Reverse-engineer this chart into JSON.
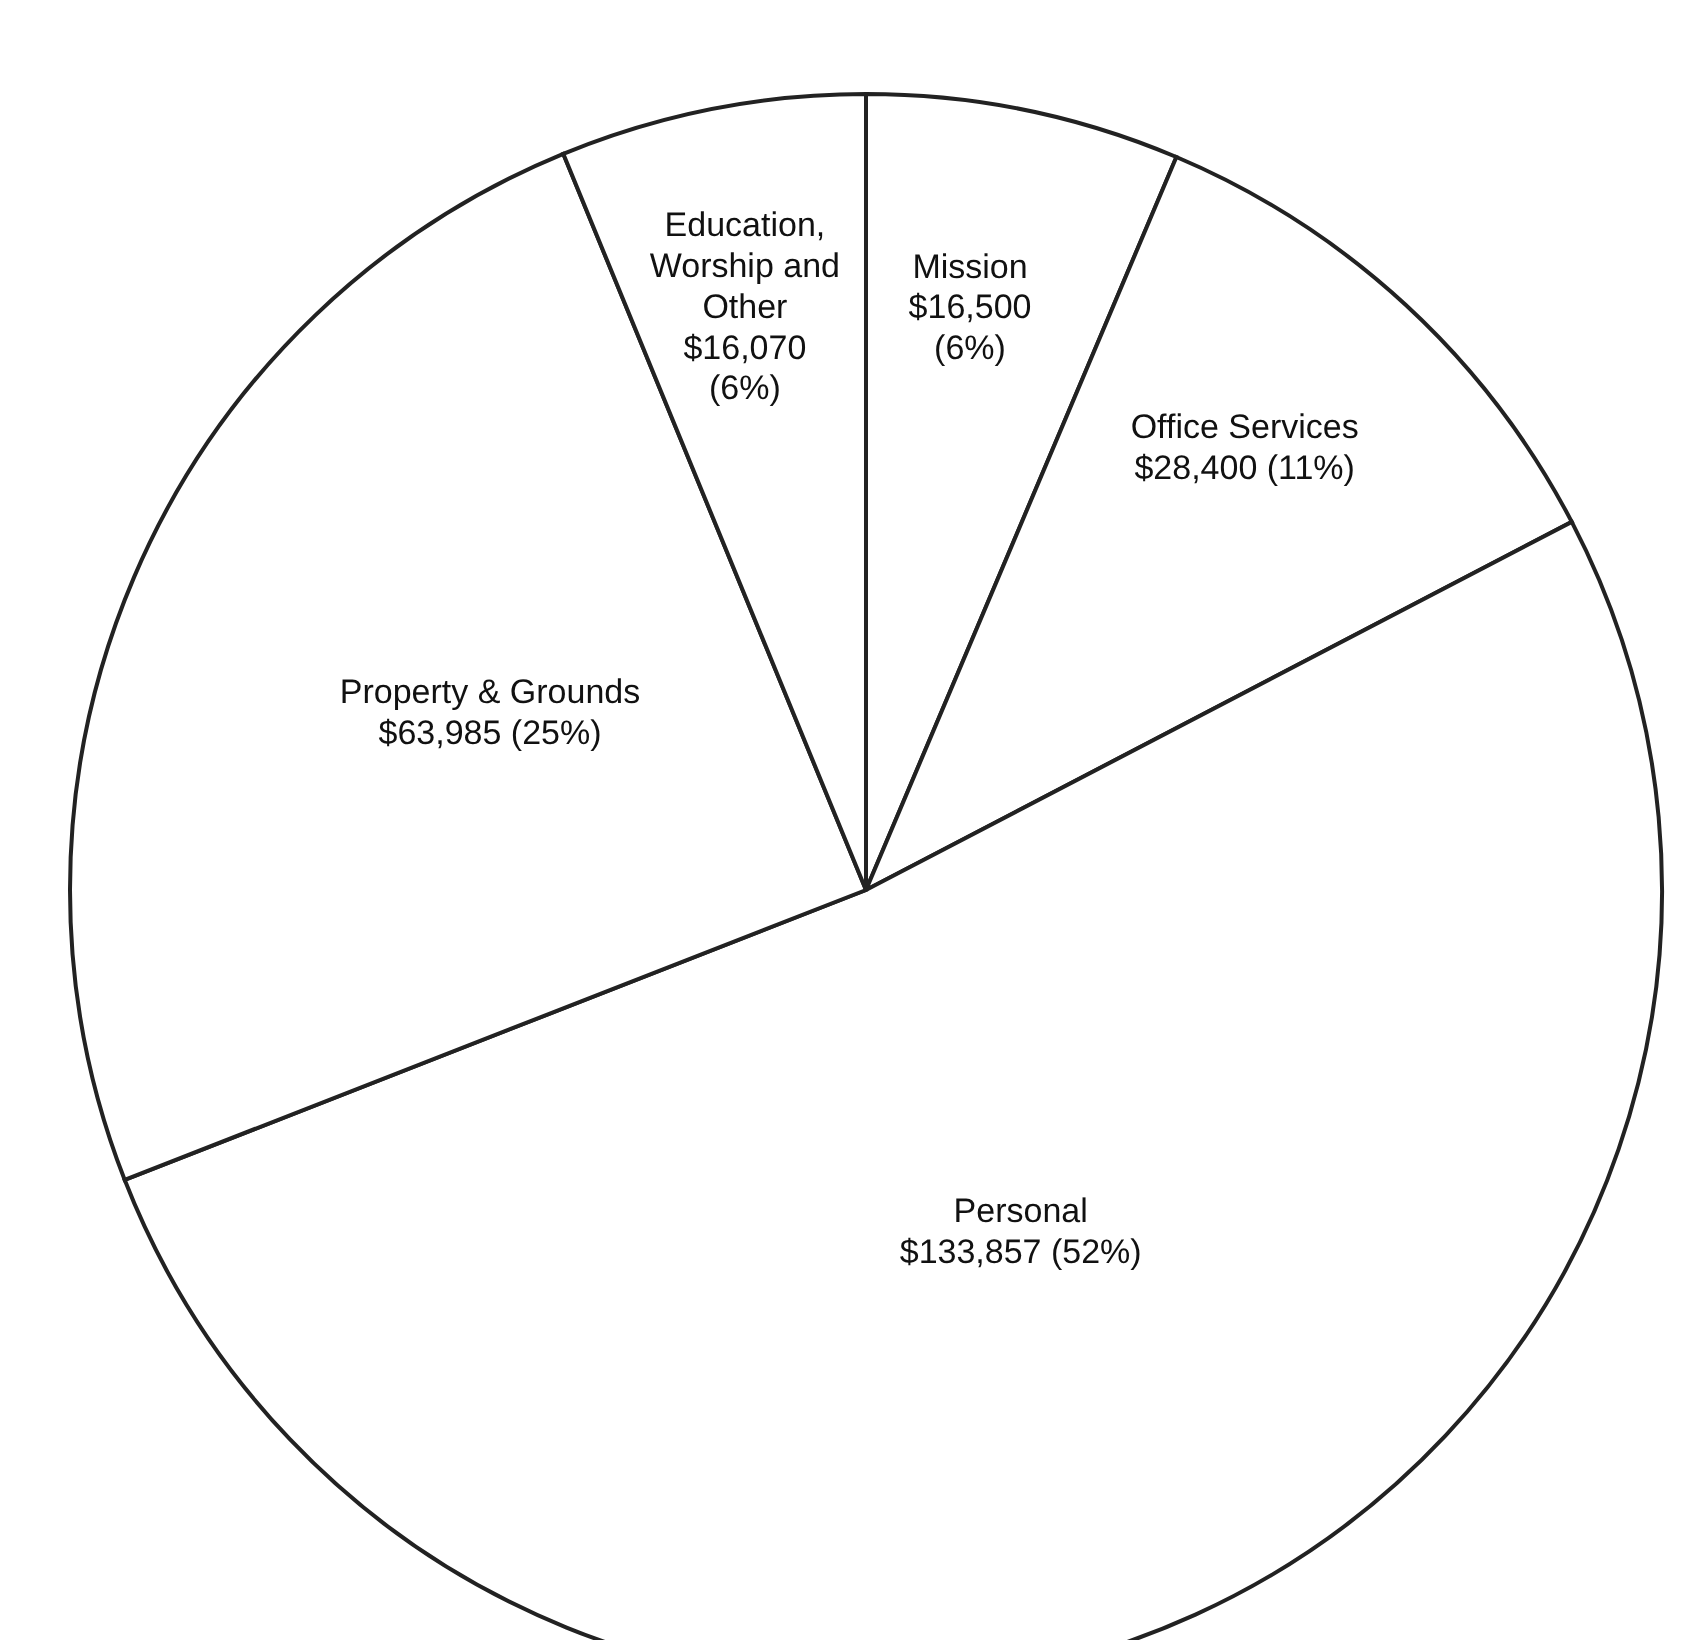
{
  "chart_data": {
    "type": "pie",
    "categories": [
      "Mission",
      "Office Services",
      "Personal",
      "Property & Grounds",
      "Education, Worship and Other"
    ],
    "values": [
      16500,
      28400,
      133857,
      63985,
      16070
    ],
    "value_labels": [
      "$16,500 (6%)",
      "$28,400 (11%)",
      "$133,857 (52%)",
      "$63,985 (25%)",
      "$16,070 (6%)"
    ],
    "colors": [
      "#ffffff",
      "#ffffff",
      "#ffffff",
      "#ffffff",
      "#ffffff"
    ]
  }
}
